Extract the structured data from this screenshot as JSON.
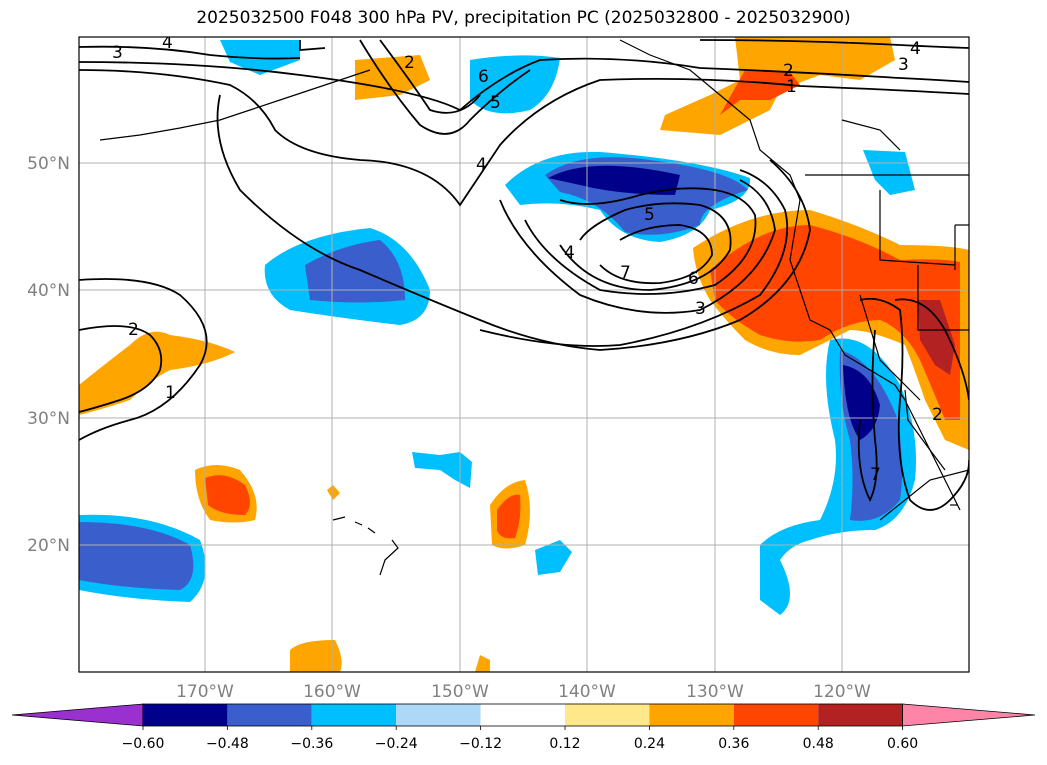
{
  "title": "2025032500 F048 300 hPa PV, precipitation PC (2025032800 - 2025032900)",
  "lat_labels": [
    "50°N",
    "40°N",
    "30°N",
    "20°N"
  ],
  "lon_labels": [
    "170°W",
    "160°W",
    "150°W",
    "140°W",
    "130°W",
    "120°W"
  ],
  "colorbar": {
    "tick_labels": [
      "−0.60",
      "−0.48",
      "−0.36",
      "−0.24",
      "−0.12",
      "0.12",
      "0.24",
      "0.36",
      "0.48",
      "0.60"
    ],
    "colors": [
      "#9b30d0",
      "#00008b",
      "#3a5fcd",
      "#00bfff",
      "#add8f7",
      "#ffffff",
      "#ffe88a",
      "#ffa500",
      "#ff4500",
      "#b22222",
      "#ff85a8"
    ]
  },
  "contour_labels": [
    "3",
    "4",
    "2",
    "1",
    "6",
    "5",
    "4",
    "5",
    "4",
    "7",
    "6",
    "3",
    "2",
    "1",
    "4",
    "3",
    "2",
    "7",
    "2"
  ]
}
